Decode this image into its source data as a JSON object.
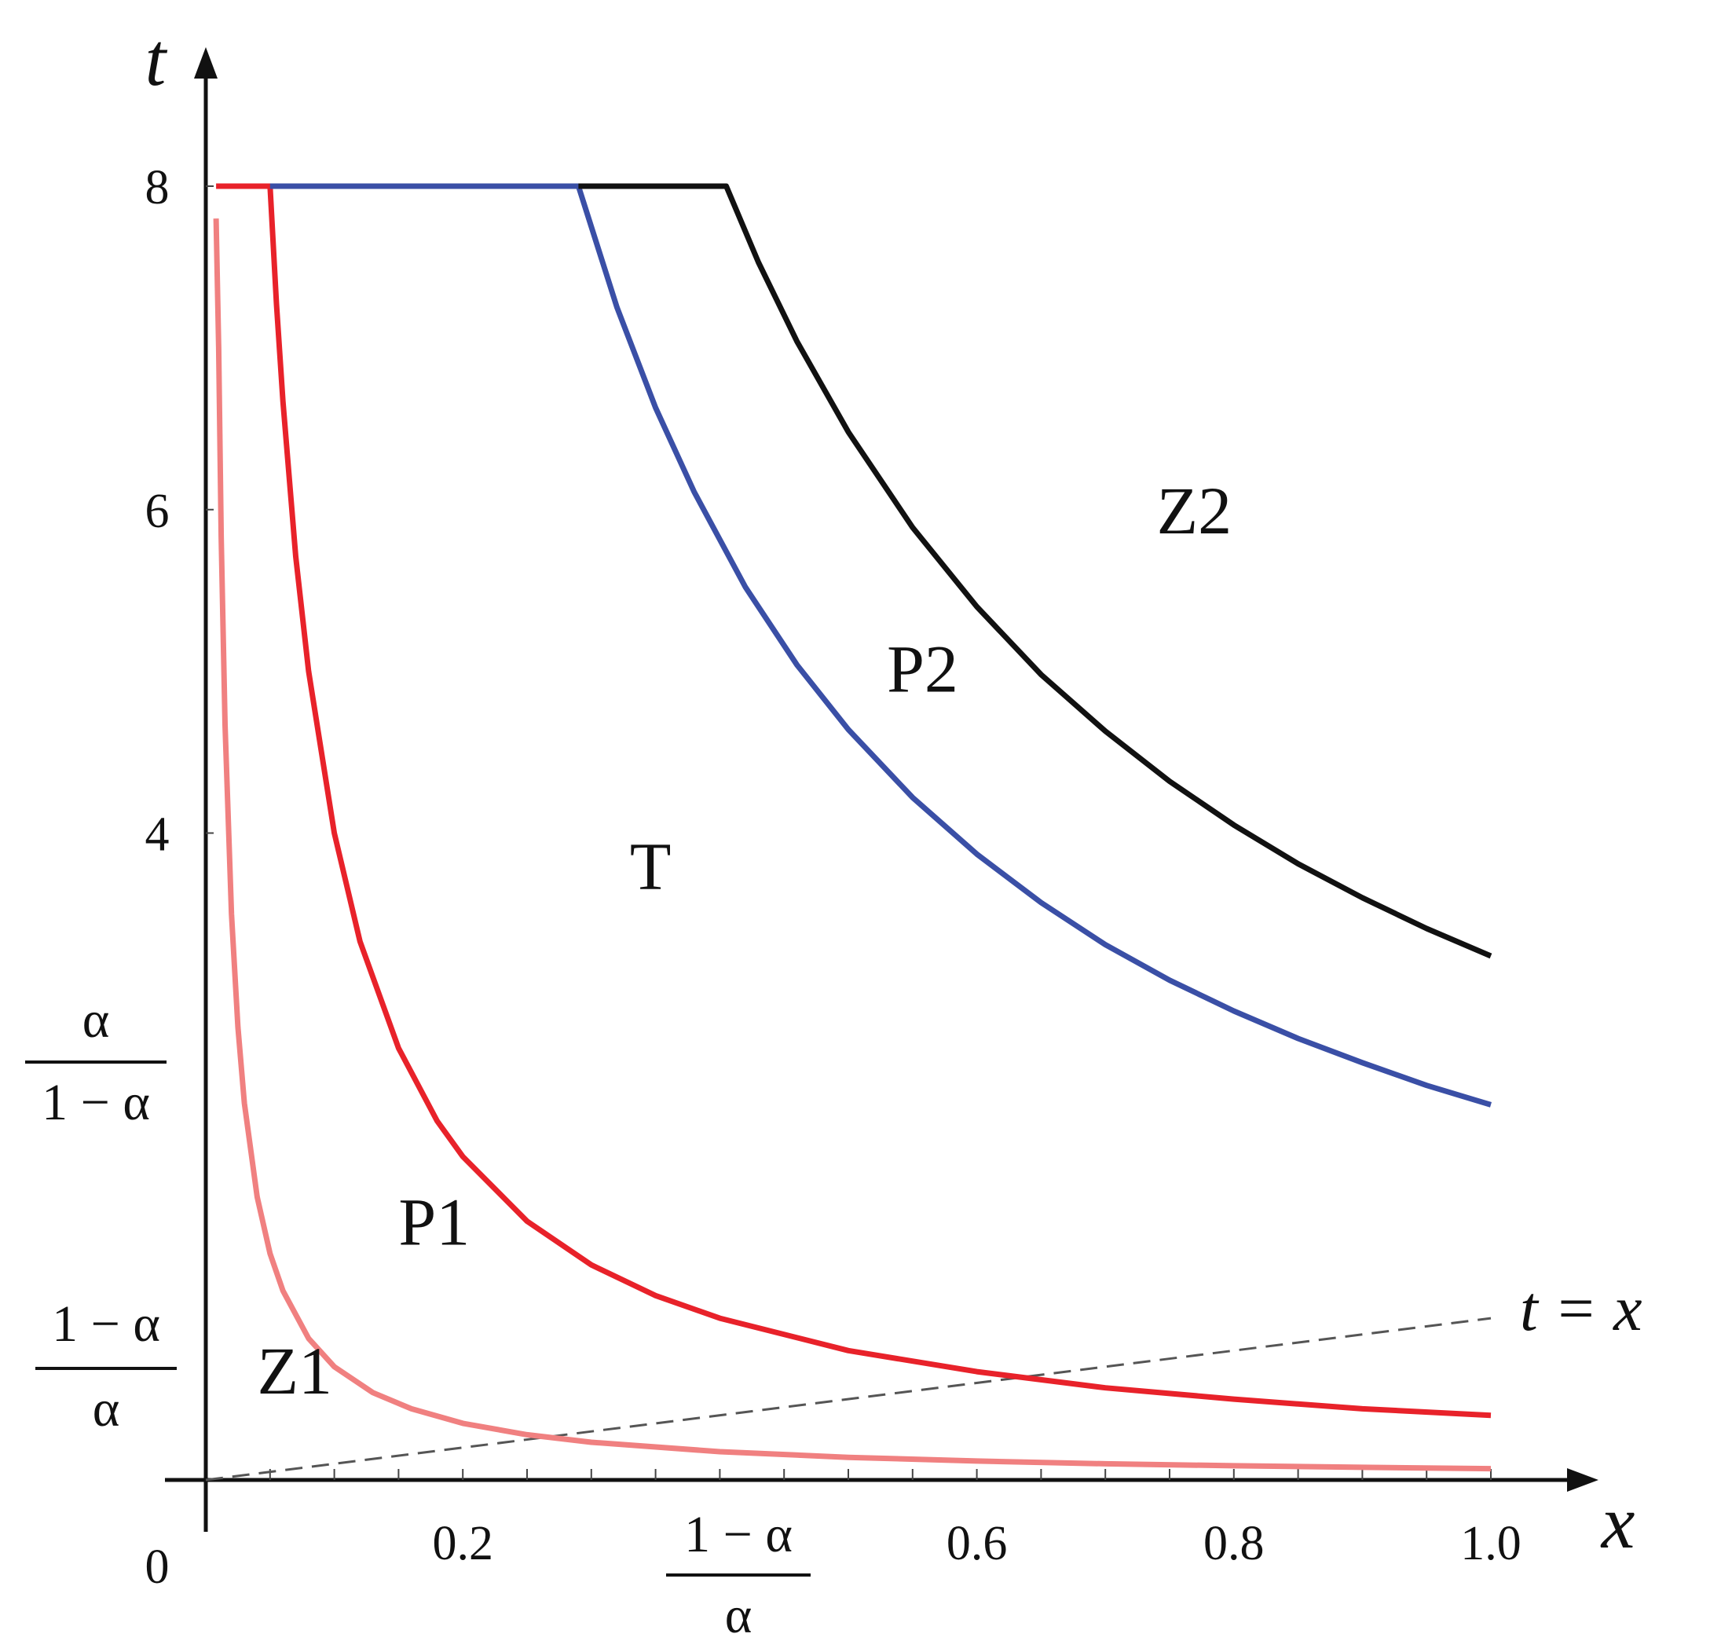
{
  "chart_data": {
    "type": "line",
    "title": "",
    "xlabel": "x",
    "ylabel": "t",
    "xlim": [
      0,
      1.0
    ],
    "ylim": [
      0,
      8
    ],
    "grid": false,
    "x_ticks": [
      "0.2",
      "0.6",
      "0.8",
      "1.0"
    ],
    "x_tick_values": [
      0.2,
      0.6,
      0.8,
      1.0
    ],
    "y_ticks": [
      "4",
      "6",
      "8"
    ],
    "y_tick_values": [
      4,
      6,
      8
    ],
    "origin_label": "0",
    "special_x_tick": {
      "numerator": "1 − α",
      "denominator": "α",
      "value": 0.41
    },
    "special_y_ticks": [
      {
        "numerator": "α",
        "denominator": "1 − α",
        "value": 2.44
      },
      {
        "numerator": "1 − α",
        "denominator": "α",
        "value": 0.73
      }
    ],
    "regions": [
      {
        "label": "Z2",
        "x": 0.74,
        "y": 6.0
      },
      {
        "label": "P2",
        "x": 0.53,
        "y": 5.02
      },
      {
        "label": "T",
        "x": 0.33,
        "y": 3.8
      },
      {
        "label": "P1",
        "x": 0.15,
        "y": 1.6
      },
      {
        "label": "Z1",
        "x": 0.04,
        "y": 0.68
      }
    ],
    "reference_line": {
      "label": "t = x",
      "x": [
        0,
        1.0
      ],
      "y": [
        0,
        1.0
      ],
      "style": "dashed"
    },
    "series": [
      {
        "color": "#f08080",
        "x": [
          0.008,
          0.01,
          0.012,
          0.015,
          0.02,
          0.025,
          0.03,
          0.04,
          0.05,
          0.06,
          0.08,
          0.1,
          0.13,
          0.16,
          0.2,
          0.25,
          0.3,
          0.4,
          0.5,
          0.6,
          0.7,
          0.8,
          0.9,
          1.0
        ],
        "y": [
          7.8,
          7.0,
          5.83,
          4.67,
          3.5,
          2.8,
          2.33,
          1.75,
          1.4,
          1.17,
          0.875,
          0.7,
          0.54,
          0.44,
          0.35,
          0.28,
          0.233,
          0.175,
          0.14,
          0.117,
          0.1,
          0.088,
          0.078,
          0.07
        ]
      },
      {
        "color": "#e8222a",
        "x": [
          0.008,
          0.05,
          0.05,
          0.055,
          0.06,
          0.07,
          0.08,
          0.1,
          0.12,
          0.15,
          0.18,
          0.2,
          0.25,
          0.3,
          0.35,
          0.4,
          0.5,
          0.6,
          0.7,
          0.8,
          0.9,
          1.0
        ],
        "y": [
          8.0,
          8.0,
          8.0,
          7.27,
          6.67,
          5.71,
          5.0,
          4.0,
          3.33,
          2.67,
          2.22,
          2.0,
          1.6,
          1.33,
          1.14,
          1.0,
          0.8,
          0.67,
          0.57,
          0.5,
          0.44,
          0.4
        ]
      },
      {
        "color": "#3a4fa6",
        "x": [
          0.05,
          0.29,
          0.29,
          0.32,
          0.35,
          0.38,
          0.42,
          0.46,
          0.5,
          0.55,
          0.6,
          0.65,
          0.7,
          0.75,
          0.8,
          0.85,
          0.9,
          0.95,
          1.0
        ],
        "y": [
          8.0,
          8.0,
          8.0,
          7.25,
          6.63,
          6.11,
          5.52,
          5.04,
          4.64,
          4.22,
          3.87,
          3.57,
          3.31,
          3.09,
          2.9,
          2.73,
          2.58,
          2.44,
          2.32
        ]
      },
      {
        "color": "#111111",
        "x": [
          0.29,
          0.405,
          0.405,
          0.43,
          0.46,
          0.5,
          0.55,
          0.6,
          0.65,
          0.7,
          0.75,
          0.8,
          0.85,
          0.9,
          0.95,
          1.0
        ],
        "y": [
          8.0,
          8.0,
          8.0,
          7.53,
          7.04,
          6.48,
          5.89,
          5.4,
          4.98,
          4.63,
          4.32,
          4.05,
          3.81,
          3.6,
          3.41,
          3.24
        ]
      }
    ]
  }
}
